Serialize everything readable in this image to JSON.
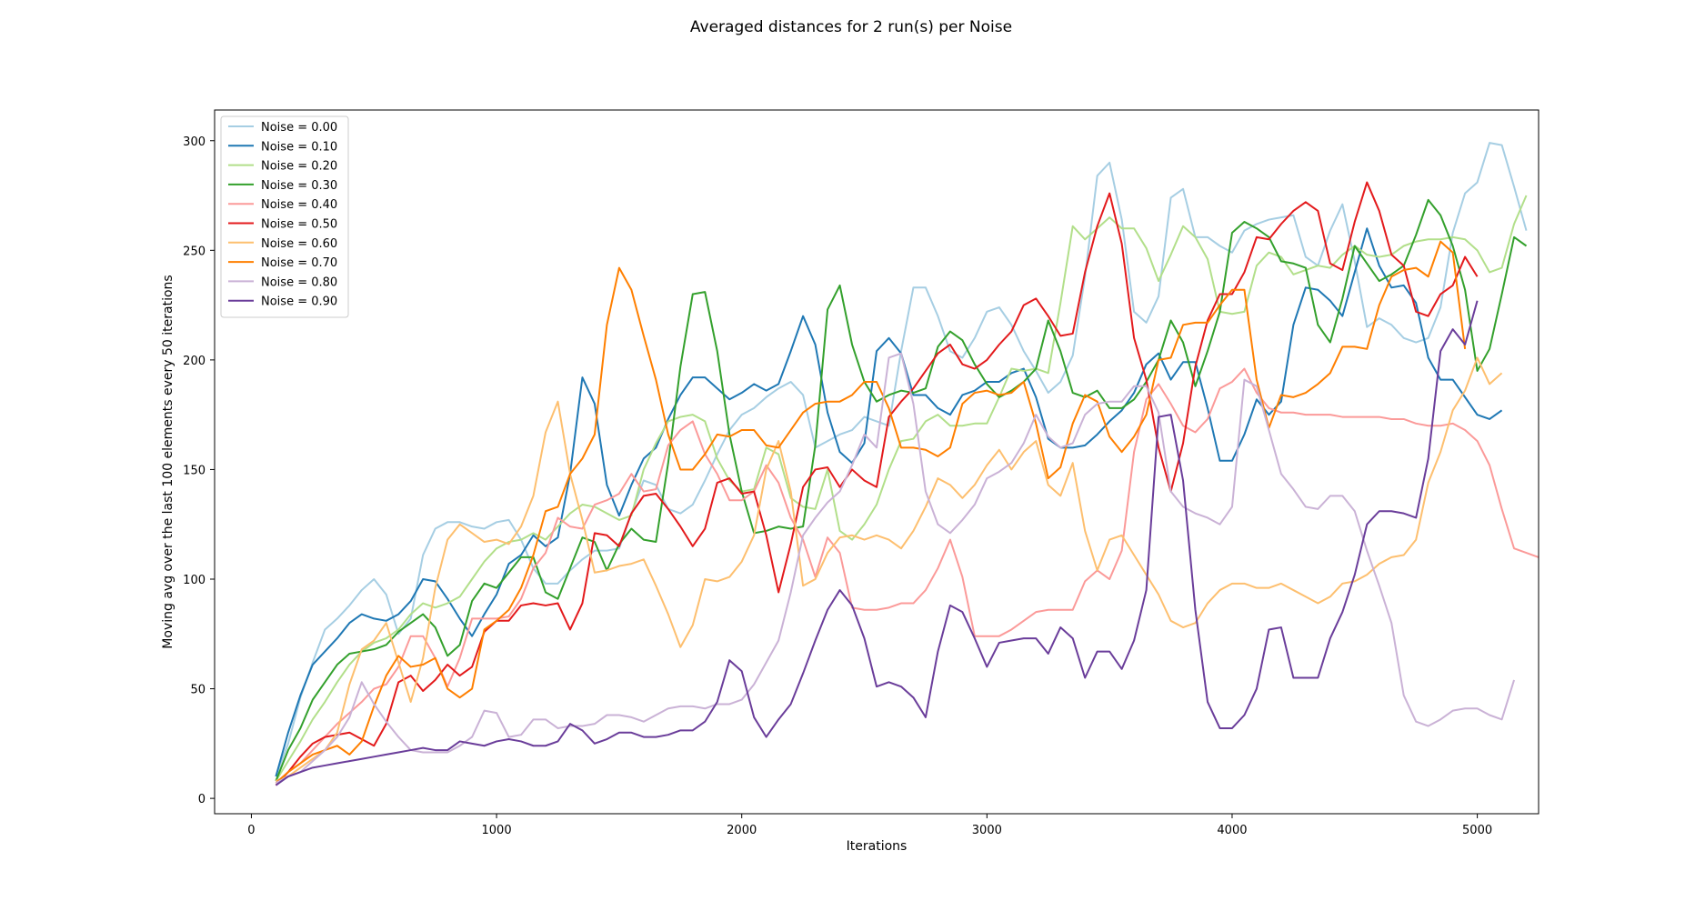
{
  "chart_data": {
    "type": "line",
    "title": "Averaged distances for 2 run(s) per Noise",
    "xlabel": "Iterations",
    "ylabel": "Moving avg over the last 100 elements every 50 iterations",
    "xlim": [
      -150,
      5250
    ],
    "ylim": [
      -7,
      314
    ],
    "xticks": [
      0,
      1000,
      2000,
      3000,
      4000,
      5000
    ],
    "yticks": [
      0,
      50,
      100,
      150,
      200,
      250,
      300
    ],
    "grid": false,
    "legend_position": "upper left",
    "x_start": 100,
    "x_step": 50,
    "series": [
      {
        "name": "Noise = 0.00",
        "color": "#a6cee3",
        "values": [
          10,
          25,
          46,
          62,
          77,
          82,
          88,
          95,
          100,
          93,
          75,
          82,
          111,
          123,
          126,
          126,
          124,
          123,
          126,
          127,
          118,
          105,
          98,
          98,
          104,
          109,
          113,
          113,
          114,
          130,
          145,
          143,
          132,
          130,
          134,
          145,
          157,
          168,
          175,
          178,
          183,
          187,
          190,
          184,
          160,
          163,
          166,
          168,
          174,
          172,
          170,
          204,
          233,
          233,
          220,
          204,
          201,
          210,
          222,
          224,
          216,
          204,
          195,
          185,
          190,
          202,
          238,
          284,
          290,
          264,
          222,
          217,
          229,
          274,
          278,
          256,
          256,
          252,
          249,
          259,
          262,
          264,
          265,
          266,
          247,
          243,
          259,
          271,
          245,
          215,
          219,
          216,
          210,
          208,
          210,
          224,
          258,
          276,
          281,
          299,
          298,
          279,
          259
        ]
      },
      {
        "name": "Noise = 0.10",
        "color": "#1f78b4",
        "values": [
          10,
          30,
          47,
          61,
          67,
          73,
          80,
          84,
          82,
          81,
          84,
          90,
          100,
          99,
          91,
          82,
          74,
          84,
          93,
          107,
          111,
          120,
          115,
          119,
          148,
          192,
          180,
          143,
          129,
          143,
          155,
          160,
          173,
          184,
          192,
          192,
          187,
          182,
          185,
          189,
          186,
          189,
          204,
          220,
          207,
          176,
          158,
          153,
          162,
          204,
          210,
          203,
          184,
          184,
          178,
          175,
          184,
          186,
          190,
          190,
          194,
          196,
          183,
          164,
          160,
          160,
          161,
          166,
          172,
          177,
          185,
          198,
          203,
          191,
          199,
          199,
          178,
          154,
          154,
          166,
          182,
          175,
          181,
          216,
          233,
          232,
          227,
          220,
          240,
          260,
          243,
          233,
          234,
          226,
          201,
          191,
          191,
          183,
          175,
          173,
          177
        ]
      },
      {
        "name": "Noise = 0.20",
        "color": "#b2df8a",
        "values": [
          8,
          17,
          26,
          36,
          44,
          53,
          61,
          67,
          71,
          73,
          77,
          84,
          89,
          87,
          89,
          92,
          100,
          108,
          114,
          117,
          118,
          121,
          118,
          124,
          130,
          134,
          133,
          130,
          127,
          129,
          150,
          162,
          172,
          174,
          175,
          172,
          155,
          145,
          140,
          141,
          160,
          157,
          137,
          133,
          132,
          150,
          122,
          118,
          125,
          134,
          150,
          163,
          164,
          172,
          175,
          170,
          170,
          171,
          171,
          183,
          196,
          195,
          196,
          194,
          226,
          261,
          255,
          260,
          265,
          260,
          260,
          251,
          236,
          248,
          261,
          256,
          246,
          222,
          221,
          222,
          243,
          249,
          247,
          239,
          241,
          243,
          242,
          248,
          252,
          248,
          247,
          248,
          252,
          254,
          255,
          255,
          256,
          255,
          250,
          240,
          242,
          262,
          275
        ]
      },
      {
        "name": "Noise = 0.30",
        "color": "#33a02c",
        "values": [
          8,
          22,
          32,
          45,
          53,
          61,
          66,
          67,
          68,
          70,
          76,
          80,
          84,
          78,
          65,
          70,
          90,
          98,
          96,
          103,
          110,
          110,
          94,
          91,
          105,
          119,
          117,
          104,
          116,
          123,
          118,
          117,
          153,
          197,
          230,
          231,
          204,
          166,
          140,
          121,
          122,
          124,
          123,
          124,
          161,
          223,
          234,
          207,
          190,
          181,
          184,
          186,
          185,
          187,
          206,
          213,
          209,
          198,
          189,
          183,
          186,
          190,
          196,
          218,
          204,
          185,
          183,
          186,
          178,
          178,
          182,
          190,
          200,
          218,
          208,
          188,
          204,
          222,
          258,
          263,
          260,
          256,
          245,
          244,
          242,
          216,
          208,
          228,
          252,
          244,
          236,
          239,
          243,
          257,
          273,
          266,
          252,
          232,
          195,
          205,
          230,
          256,
          252
        ]
      },
      {
        "name": "Noise = 0.40",
        "color": "#fb9a99",
        "values": [
          7,
          12,
          16,
          22,
          28,
          34,
          39,
          44,
          50,
          52,
          60,
          74,
          74,
          64,
          51,
          64,
          82,
          82,
          82,
          83,
          91,
          105,
          112,
          128,
          124,
          123,
          134,
          136,
          139,
          148,
          140,
          141,
          161,
          168,
          172,
          157,
          148,
          136,
          136,
          140,
          152,
          144,
          128,
          118,
          101,
          119,
          112,
          87,
          86,
          86,
          87,
          89,
          89,
          95,
          105,
          118,
          101,
          74,
          74,
          74,
          77,
          81,
          85,
          86,
          86,
          86,
          99,
          104,
          100,
          113,
          158,
          182,
          189,
          180,
          170,
          167,
          173,
          187,
          190,
          196,
          185,
          178,
          176,
          176,
          175,
          175,
          175,
          174,
          174,
          174,
          174,
          173,
          173,
          171,
          170,
          170,
          171,
          168,
          163,
          152,
          132,
          114,
          112,
          110
        ]
      },
      {
        "name": "Noise = 0.50",
        "color": "#e31a1c",
        "values": [
          6,
          12,
          19,
          25,
          28,
          29,
          30,
          27,
          24,
          34,
          53,
          56,
          49,
          54,
          61,
          56,
          60,
          76,
          81,
          81,
          88,
          89,
          88,
          89,
          77,
          89,
          121,
          120,
          115,
          130,
          138,
          139,
          132,
          124,
          115,
          123,
          144,
          146,
          139,
          140,
          120,
          94,
          116,
          142,
          150,
          151,
          142,
          150,
          145,
          142,
          174,
          181,
          187,
          195,
          203,
          207,
          198,
          196,
          200,
          207,
          213,
          225,
          228,
          220,
          211,
          212,
          240,
          261,
          276,
          253,
          210,
          191,
          160,
          140,
          162,
          197,
          218,
          230,
          230,
          240,
          256,
          255,
          262,
          268,
          272,
          268,
          244,
          241,
          263,
          281,
          268,
          248,
          243,
          222,
          220,
          230,
          234,
          247,
          238
        ]
      },
      {
        "name": "Noise = 0.60",
        "color": "#fdbf6f",
        "values": [
          8,
          10,
          14,
          18,
          22,
          30,
          52,
          68,
          72,
          80,
          62,
          44,
          64,
          96,
          118,
          125,
          121,
          117,
          118,
          116,
          124,
          138,
          167,
          181,
          148,
          127,
          103,
          104,
          106,
          107,
          109,
          97,
          84,
          69,
          79,
          100,
          99,
          101,
          108,
          120,
          150,
          163,
          140,
          97,
          100,
          112,
          119,
          120,
          118,
          120,
          118,
          114,
          122,
          133,
          146,
          143,
          137,
          143,
          152,
          159,
          150,
          158,
          163,
          143,
          138,
          153,
          122,
          104,
          118,
          120,
          111,
          102,
          93,
          81,
          78,
          80,
          89,
          95,
          98,
          98,
          96,
          96,
          98,
          95,
          92,
          89,
          92,
          98,
          99,
          102,
          107,
          110,
          111,
          118,
          144,
          158,
          177,
          186,
          201,
          189,
          194
        ]
      },
      {
        "name": "Noise = 0.70",
        "color": "#ff7f00",
        "values": [
          7,
          12,
          16,
          20,
          22,
          24,
          20,
          26,
          42,
          56,
          65,
          60,
          61,
          64,
          50,
          46,
          50,
          77,
          81,
          86,
          96,
          111,
          131,
          133,
          148,
          155,
          166,
          216,
          242,
          232,
          211,
          191,
          166,
          150,
          150,
          157,
          166,
          165,
          168,
          168,
          161,
          160,
          168,
          176,
          180,
          181,
          181,
          184,
          190,
          190,
          178,
          160,
          160,
          159,
          156,
          160,
          180,
          185,
          186,
          184,
          185,
          190,
          171,
          146,
          151,
          171,
          184,
          181,
          165,
          158,
          165,
          175,
          200,
          201,
          216,
          217,
          217,
          225,
          232,
          232,
          191,
          169,
          184,
          183,
          185,
          189,
          194,
          206,
          206,
          205,
          225,
          238,
          241,
          242,
          238,
          254,
          249,
          205
        ]
      },
      {
        "name": "Noise = 0.80",
        "color": "#cab2d6",
        "values": [
          7,
          10,
          12,
          17,
          22,
          28,
          37,
          53,
          43,
          35,
          28,
          22,
          21,
          21,
          21,
          24,
          28,
          40,
          39,
          28,
          29,
          36,
          36,
          32,
          33,
          33,
          34,
          38,
          38,
          37,
          35,
          38,
          41,
          42,
          42,
          41,
          43,
          43,
          45,
          52,
          62,
          72,
          94,
          120,
          128,
          135,
          140,
          152,
          166,
          160,
          201,
          203,
          180,
          140,
          125,
          121,
          127,
          134,
          146,
          149,
          153,
          162,
          175,
          165,
          160,
          162,
          175,
          180,
          181,
          181,
          188,
          188,
          176,
          140,
          133,
          130,
          128,
          125,
          133,
          191,
          188,
          168,
          148,
          141,
          133,
          132,
          138,
          138,
          131,
          113,
          97,
          80,
          47,
          35,
          33,
          36,
          40,
          41,
          41,
          38,
          36,
          54
        ]
      },
      {
        "name": "Noise = 0.90",
        "color": "#6a3d9a",
        "values": [
          6,
          10,
          12,
          14,
          15,
          16,
          17,
          18,
          19,
          20,
          21,
          22,
          23,
          22,
          22,
          26,
          25,
          24,
          26,
          27,
          26,
          24,
          24,
          26,
          34,
          31,
          25,
          27,
          30,
          30,
          28,
          28,
          29,
          31,
          31,
          35,
          44,
          63,
          58,
          37,
          28,
          36,
          43,
          57,
          72,
          86,
          95,
          88,
          73,
          51,
          53,
          51,
          46,
          37,
          67,
          88,
          85,
          73,
          60,
          71,
          72,
          73,
          73,
          66,
          78,
          73,
          55,
          67,
          67,
          59,
          72,
          95,
          174,
          175,
          145,
          86,
          44,
          32,
          32,
          38,
          50,
          77,
          78,
          55,
          55,
          55,
          73,
          85,
          102,
          125,
          131,
          131,
          130,
          128,
          155,
          204,
          214,
          207,
          227
        ]
      }
    ]
  }
}
